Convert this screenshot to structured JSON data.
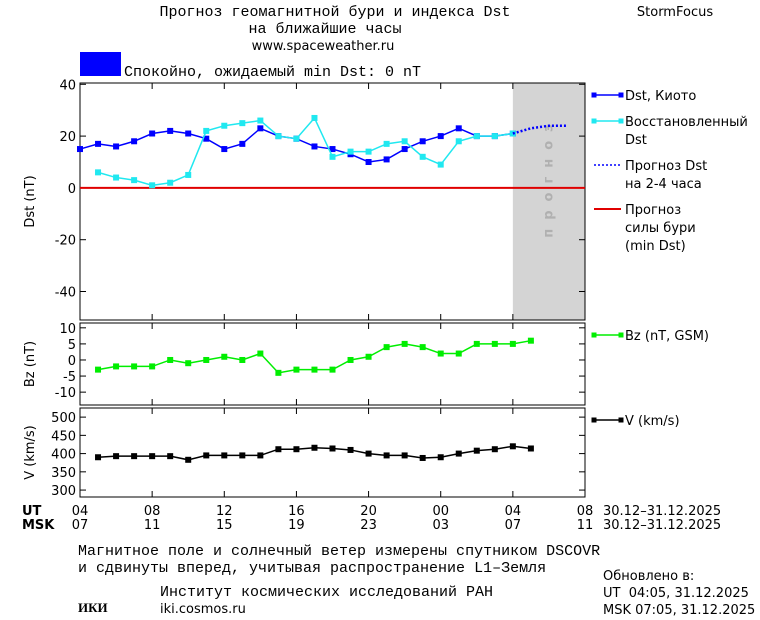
{
  "header": {
    "title": "Прогноз геомагнитной бури и индекса Dst",
    "title_line2": "на ближайшие часы",
    "url": "www.spaceweather.ru",
    "brand": "StormFocus",
    "status": "Спокойно, ожидаемый min Dst: 0 nT"
  },
  "time_axis": {
    "ut_label": "UT",
    "msk_label": "MSK",
    "xlim": [
      0,
      28
    ],
    "ut_ticks": [
      {
        "value": 0,
        "label": "04"
      },
      {
        "value": 4,
        "label": "08"
      },
      {
        "value": 8,
        "label": "12"
      },
      {
        "value": 12,
        "label": "16"
      },
      {
        "value": 16,
        "label": "20"
      },
      {
        "value": 20,
        "label": "00"
      },
      {
        "value": 24,
        "label": "04"
      },
      {
        "value": 28,
        "label": "08"
      }
    ],
    "msk_ticks": [
      {
        "value": 0,
        "label": "07"
      },
      {
        "value": 4,
        "label": "11"
      },
      {
        "value": 8,
        "label": "15"
      },
      {
        "value": 12,
        "label": "19"
      },
      {
        "value": 16,
        "label": "23"
      },
      {
        "value": 20,
        "label": "03"
      },
      {
        "value": 24,
        "label": "07"
      },
      {
        "value": 28,
        "label": "11"
      }
    ],
    "ut_dates": "30.12–31.12.2025",
    "msk_dates": "30.12–31.12.2025"
  },
  "chart_data": [
    {
      "type": "line",
      "ylabel": "Dst (nT)",
      "ylim": [
        -51,
        40.5
      ],
      "yticks": [
        -40,
        -20,
        0,
        20,
        40
      ],
      "xlim": [
        0,
        28
      ],
      "forecast_start": 24,
      "forecast_label": "прогноз",
      "x": [
        0,
        1,
        2,
        3,
        4,
        5,
        6,
        7,
        8,
        9,
        10,
        11,
        12,
        13,
        14,
        15,
        16,
        17,
        18,
        19,
        20,
        21,
        22,
        23,
        24,
        25,
        26,
        27
      ],
      "series": [
        {
          "name": "Dst, Киото",
          "color": "#0000ff",
          "markers": true,
          "line_style": "solid",
          "values": [
            15,
            17,
            16,
            18,
            21,
            22,
            21,
            19,
            15,
            17,
            23,
            20,
            19,
            16,
            15,
            13,
            10,
            11,
            15,
            18,
            20,
            23,
            20,
            20,
            21,
            null,
            null,
            null
          ]
        },
        {
          "name": "Восстановленный\nDst",
          "color": "#20e8f0",
          "markers": true,
          "line_style": "solid",
          "values": [
            null,
            6,
            4,
            3,
            1,
            2,
            5,
            22,
            24,
            25,
            26,
            20,
            19,
            27,
            12,
            14,
            14,
            17,
            18,
            12,
            9,
            18,
            20,
            20,
            21,
            null,
            null,
            null
          ]
        },
        {
          "name": "Прогноз Dst\nна 2-4 часа",
          "color": "#0000ff",
          "markers": false,
          "line_style": "dotted",
          "values": [
            null,
            null,
            null,
            null,
            null,
            null,
            null,
            null,
            null,
            null,
            null,
            null,
            null,
            null,
            null,
            null,
            null,
            null,
            null,
            null,
            null,
            null,
            null,
            null,
            21,
            23,
            24,
            24
          ]
        }
      ],
      "hline": {
        "name": "Прогноз\nсилы бури\n(min Dst)",
        "color": "#e00000",
        "value": 0
      }
    },
    {
      "type": "line",
      "ylabel": "Bz (nT)",
      "ylim": [
        -14,
        11.5
      ],
      "yticks": [
        -10,
        -5,
        0,
        5,
        10
      ],
      "xlim": [
        0,
        28
      ],
      "x": [
        1,
        2,
        3,
        4,
        5,
        6,
        7,
        8,
        9,
        10,
        11,
        12,
        13,
        14,
        15,
        16,
        17,
        18,
        19,
        20,
        21,
        22,
        23,
        24,
        25
      ],
      "series": [
        {
          "name": "Bz (nT, GSM)",
          "color": "#00ee00",
          "markers": true,
          "line_style": "solid",
          "values": [
            -3,
            -2,
            -2,
            -2,
            0,
            -1,
            0,
            1,
            0,
            2,
            -4,
            -3,
            -3,
            -3,
            0,
            1,
            4,
            5,
            4,
            2,
            2,
            5,
            5,
            5,
            6
          ]
        }
      ]
    },
    {
      "type": "line",
      "ylabel": "V (km/s)",
      "ylim": [
        281,
        525
      ],
      "yticks": [
        300,
        350,
        400,
        450,
        500
      ],
      "xlim": [
        0,
        28
      ],
      "x": [
        1,
        2,
        3,
        4,
        5,
        6,
        7,
        8,
        9,
        10,
        11,
        12,
        13,
        14,
        15,
        16,
        17,
        18,
        19,
        20,
        21,
        22,
        23,
        24,
        25
      ],
      "series": [
        {
          "name": "V (km/s)",
          "color": "#000000",
          "markers": true,
          "line_style": "solid",
          "values": [
            390,
            393,
            393,
            393,
            393,
            383,
            395,
            395,
            395,
            395,
            412,
            412,
            416,
            414,
            410,
            400,
            395,
            395,
            388,
            390,
            400,
            408,
            412,
            420,
            414
          ]
        }
      ]
    }
  ],
  "footer": {
    "note_line1": "Магнитное поле и солнечный ветер измерены спутником DSCOVR",
    "note_line2": "и сдвинуты вперед, учитывая распространение L1–Земля",
    "logo": "ИКИ",
    "institute": "Институт космических исследований РАН",
    "institute_url": "iki.cosmos.ru",
    "updated_label": "Обновлено в:",
    "updated_ut": "UT  04:05, 31.12.2025",
    "updated_msk": "MSK 07:05, 31.12.2025"
  }
}
